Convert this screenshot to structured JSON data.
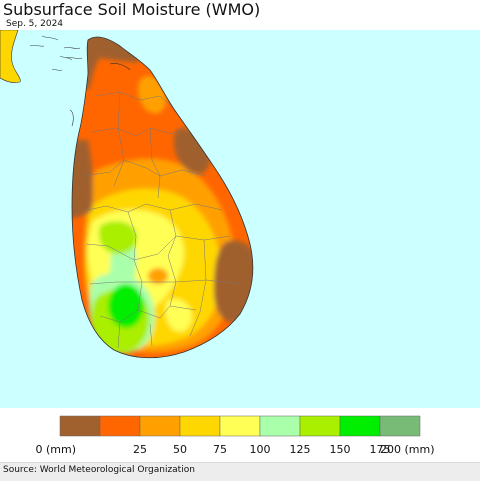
{
  "header": {
    "title": "Subsurface Soil Moisture (WMO)",
    "date": "Sep. 5, 2024"
  },
  "map": {
    "region_shown": "Sri Lanka",
    "ocean_color": "#ccffff",
    "land_outside_color": "#ffd700"
  },
  "legend": {
    "colors": [
      "#a0612f",
      "#ff6600",
      "#ffa000",
      "#ffd700",
      "#ffff55",
      "#aaffaa",
      "#aaee00",
      "#00ee00",
      "#77bb77"
    ],
    "tick_labels": [
      "0 (mm)",
      "25",
      "50",
      "75",
      "100",
      "125",
      "150",
      "175",
      "200 (mm)"
    ]
  },
  "footer": {
    "source": "Source: World Meteorological Organization"
  }
}
